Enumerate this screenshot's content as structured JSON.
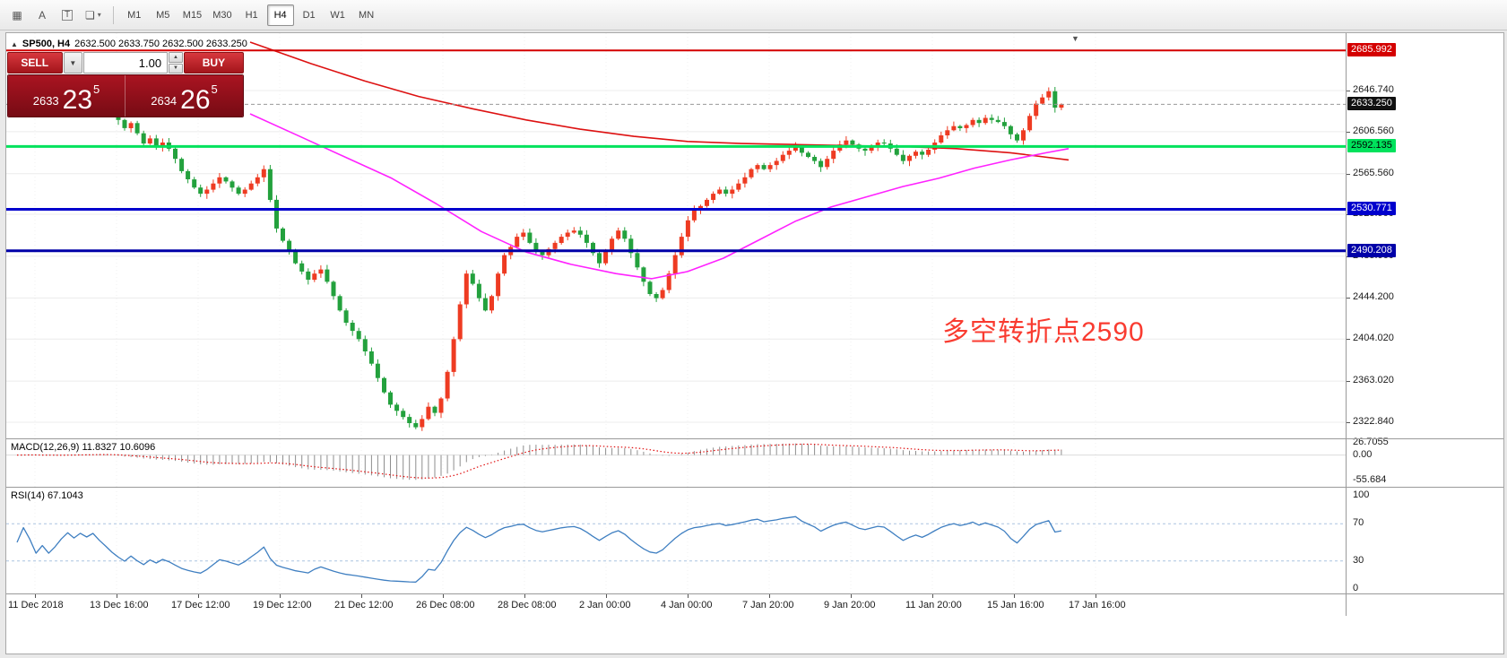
{
  "toolbar": {
    "icons": [
      {
        "name": "tick-chart-icon",
        "glyph": "▦"
      },
      {
        "name": "text-label-icon",
        "glyph": "A"
      },
      {
        "name": "text-tool-icon",
        "glyph": "T"
      },
      {
        "name": "objects-icon",
        "glyph": "❏"
      },
      {
        "name": "chevron-down-icon",
        "glyph": "▾"
      }
    ],
    "timeframes": [
      "M1",
      "M5",
      "M15",
      "M30",
      "H1",
      "H4",
      "D1",
      "W1",
      "MN"
    ],
    "active_timeframe": "H4"
  },
  "chart_header": {
    "icon": "▲",
    "title": "SP500, H4",
    "ohlc": "2632.500 2633.750 2632.500 2633.250"
  },
  "trade_panel": {
    "sell_label": "SELL",
    "buy_label": "BUY",
    "volume": "1.00",
    "dropdown_glyph": "▼",
    "spin_up_glyph": "▲",
    "spin_down_glyph": "▼",
    "bid": {
      "prefix": "2633",
      "big": "23",
      "sup": "5"
    },
    "ask": {
      "prefix": "2634",
      "big": "26",
      "sup": "5"
    }
  },
  "annotation": {
    "text": "多空转折点2590"
  },
  "scroll_marker_glyph": "▼",
  "indicators": {
    "macd": {
      "legend": "MACD(12,26,9) 11.8327 10.6096",
      "axis_labels": [
        "26.7055",
        "0.00",
        "-55.684"
      ]
    },
    "rsi": {
      "legend": "RSI(14) 67.1043",
      "axis_labels": [
        "100",
        "70",
        "30",
        "0"
      ]
    }
  },
  "chart_data": {
    "type": "candlestick",
    "symbol": "SP500",
    "timeframe": "H4",
    "current_bar_ohlc": [
      2632.5,
      2633.75,
      2632.5,
      2633.25
    ],
    "bull_color": "#ee3b22",
    "bear_color": "#23a13d",
    "first_open": 2632,
    "closes": [
      2636,
      2642,
      2638,
      2630,
      2634,
      2628,
      2632,
      2638,
      2644,
      2640,
      2645,
      2642,
      2646,
      2640,
      2634,
      2626,
      2618,
      2610,
      2615,
      2605,
      2595,
      2600,
      2592,
      2596,
      2590,
      2580,
      2568,
      2560,
      2552,
      2546,
      2550,
      2556,
      2562,
      2558,
      2552,
      2546,
      2550,
      2556,
      2562,
      2570,
      2540,
      2512,
      2500,
      2490,
      2478,
      2470,
      2462,
      2468,
      2472,
      2460,
      2446,
      2432,
      2420,
      2412,
      2404,
      2392,
      2380,
      2366,
      2352,
      2340,
      2334,
      2328,
      2322,
      2318,
      2326,
      2338,
      2332,
      2346,
      2372,
      2404,
      2438,
      2468,
      2458,
      2444,
      2432,
      2446,
      2468,
      2486,
      2494,
      2504,
      2508,
      2498,
      2490,
      2486,
      2492,
      2498,
      2504,
      2508,
      2510,
      2506,
      2498,
      2488,
      2478,
      2490,
      2502,
      2510,
      2502,
      2488,
      2474,
      2460,
      2448,
      2444,
      2452,
      2468,
      2486,
      2504,
      2520,
      2530,
      2534,
      2540,
      2546,
      2550,
      2546,
      2550,
      2556,
      2562,
      2570,
      2574,
      2570,
      2574,
      2578,
      2584,
      2588,
      2592,
      2586,
      2582,
      2578,
      2572,
      2580,
      2588,
      2594,
      2598,
      2594,
      2590,
      2588,
      2592,
      2596,
      2595,
      2590,
      2584,
      2578,
      2583,
      2587,
      2584,
      2589,
      2596,
      2603,
      2608,
      2612,
      2610,
      2613,
      2618,
      2615,
      2620,
      2618,
      2616,
      2612,
      2604,
      2598,
      2608,
      2622,
      2634,
      2640,
      2646,
      2630,
      2633.25
    ],
    "y_axis": {
      "ticks": [
        2646.74,
        2606.56,
        2565.56,
        2525.9,
        2485.06,
        2444.2,
        2404.02,
        2363.02,
        2322.84
      ],
      "labels": [
        "2646.740",
        "2606.560",
        "2565.560",
        "2525.900",
        "2485.060",
        "2444.200",
        "2404.020",
        "2363.020",
        "2322.840"
      ]
    },
    "x_axis": {
      "labels": [
        "11 Dec 2018",
        "13 Dec 16:00",
        "17 Dec 12:00",
        "19 Dec 12:00",
        "21 Dec 12:00",
        "26 Dec 08:00",
        "28 Dec 08:00",
        "2 Jan 00:00",
        "4 Jan 00:00",
        "7 Jan 20:00",
        "9 Jan 20:00",
        "11 Jan 20:00",
        "15 Jan 16:00",
        "17 Jan 16:00"
      ]
    },
    "horizontal_lines": [
      {
        "price": 2685.992,
        "label": "2685.992",
        "color": "#d40000",
        "text_color": "#ffffff",
        "width": 2
      },
      {
        "price": 2592.135,
        "label": "2592.135",
        "color": "#00e25c",
        "text_color": "#000000",
        "width": 3
      },
      {
        "price": 2530.771,
        "label": "2530.771",
        "color": "#0000cd",
        "text_color": "#ffffff",
        "width": 3
      },
      {
        "price": 2490.208,
        "label": "2490.208",
        "color": "#0000a8",
        "text_color": "#ffffff",
        "width": 3
      }
    ],
    "current_price": {
      "value": 2633.25,
      "label": "2633.250",
      "tag_bg": "#111111",
      "tag_fg": "#ffffff"
    },
    "moving_averages": [
      {
        "name": "ma-slow",
        "color": "#dd1111",
        "points": [
          [
            272,
            2694
          ],
          [
            340,
            2673
          ],
          [
            400,
            2656
          ],
          [
            460,
            2641
          ],
          [
            520,
            2629
          ],
          [
            580,
            2618
          ],
          [
            640,
            2609
          ],
          [
            700,
            2602
          ],
          [
            760,
            2597
          ],
          [
            820,
            2595
          ],
          [
            880,
            2594
          ],
          [
            940,
            2593
          ],
          [
            1000,
            2592
          ],
          [
            1060,
            2590
          ],
          [
            1120,
            2586
          ],
          [
            1185,
            2579
          ]
        ]
      },
      {
        "name": "ma-fast",
        "color": "#ff22ff",
        "points": [
          [
            272,
            2624
          ],
          [
            330,
            2601
          ],
          [
            380,
            2581
          ],
          [
            430,
            2561
          ],
          [
            480,
            2536
          ],
          [
            530,
            2509
          ],
          [
            580,
            2489
          ],
          [
            630,
            2477
          ],
          [
            680,
            2468
          ],
          [
            720,
            2463
          ],
          [
            760,
            2470
          ],
          [
            800,
            2483
          ],
          [
            840,
            2501
          ],
          [
            880,
            2519
          ],
          [
            920,
            2533
          ],
          [
            960,
            2543
          ],
          [
            1000,
            2553
          ],
          [
            1040,
            2561
          ],
          [
            1080,
            2571
          ],
          [
            1120,
            2579
          ],
          [
            1160,
            2586
          ],
          [
            1185,
            2590
          ]
        ]
      }
    ],
    "macd": {
      "params": [
        12,
        26,
        9
      ],
      "value": 11.8327,
      "signal_value": 10.6096,
      "axis": [
        26.7055,
        0,
        -55.684
      ]
    },
    "rsi": {
      "period": 14,
      "value": 67.1043,
      "levels": [
        70,
        30
      ],
      "axis": [
        100,
        70,
        30,
        0
      ]
    }
  }
}
